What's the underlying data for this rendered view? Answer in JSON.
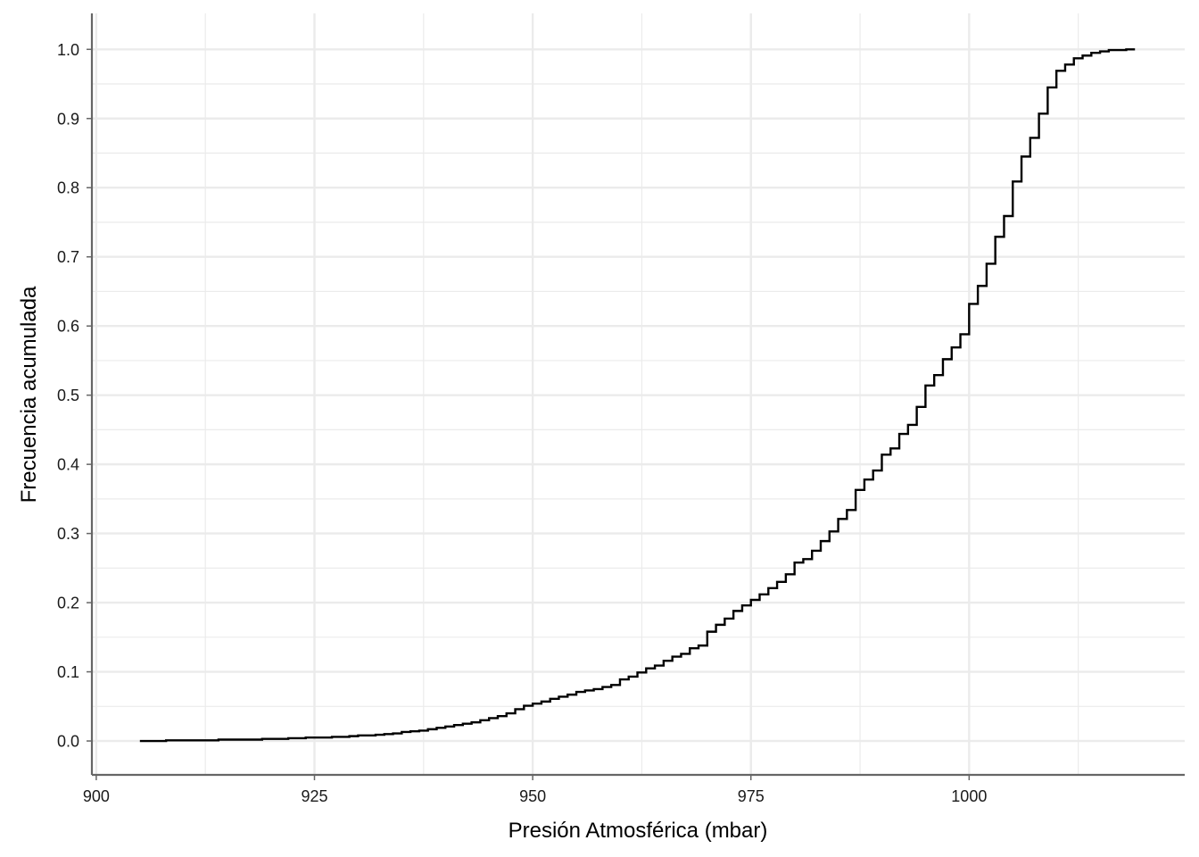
{
  "chart_data": {
    "type": "line",
    "step": true,
    "title": "",
    "xlabel": "Presión Atmosférica (mbar)",
    "ylabel": "Frecuencia acumulada",
    "xlim": [
      899.5,
      1024.7
    ],
    "ylim": [
      -0.049,
      1.052
    ],
    "x_ticks": [
      900,
      925,
      950,
      975,
      1000
    ],
    "x_tick_labels": [
      "900",
      "925",
      "950",
      "975",
      "1000"
    ],
    "y_ticks": [
      0,
      0.1,
      0.2,
      0.3,
      0.4,
      0.5,
      0.6,
      0.7,
      0.8,
      0.9,
      1.0
    ],
    "y_tick_labels": [
      "0.0",
      "0.1",
      "0.2",
      "0.3",
      "0.4",
      "0.5",
      "0.6",
      "0.7",
      "0.8",
      "0.9",
      "1.0"
    ],
    "grid": true,
    "line_color": "#000000",
    "grid_color": "#ebebeb",
    "axis_color": "#666666",
    "x": [
      905,
      906,
      907,
      908,
      909,
      910,
      911,
      912,
      913,
      914,
      915,
      916,
      917,
      918,
      919,
      920,
      921,
      922,
      923,
      924,
      925,
      926,
      927,
      928,
      929,
      930,
      931,
      932,
      933,
      934,
      935,
      936,
      937,
      938,
      939,
      940,
      941,
      942,
      943,
      944,
      945,
      946,
      947,
      948,
      949,
      950,
      951,
      952,
      953,
      954,
      955,
      956,
      957,
      958,
      959,
      960,
      961,
      962,
      963,
      964,
      965,
      966,
      967,
      968,
      969,
      970,
      971,
      972,
      973,
      974,
      975,
      976,
      977,
      978,
      979,
      980,
      981,
      982,
      983,
      984,
      985,
      986,
      987,
      988,
      989,
      990,
      991,
      992,
      993,
      994,
      995,
      996,
      997,
      998,
      999,
      1000,
      1001,
      1002,
      1003,
      1004,
      1005,
      1006,
      1007,
      1008,
      1009,
      1010,
      1011,
      1012,
      1013,
      1014,
      1015,
      1016,
      1017,
      1018,
      1019
    ],
    "y": [
      0.0,
      0.0,
      0.0,
      0.001,
      0.001,
      0.001,
      0.001,
      0.001,
      0.001,
      0.002,
      0.002,
      0.002,
      0.002,
      0.002,
      0.003,
      0.003,
      0.003,
      0.004,
      0.004,
      0.005,
      0.005,
      0.005,
      0.006,
      0.006,
      0.007,
      0.008,
      0.008,
      0.009,
      0.01,
      0.011,
      0.013,
      0.014,
      0.015,
      0.017,
      0.019,
      0.021,
      0.023,
      0.025,
      0.027,
      0.03,
      0.033,
      0.036,
      0.04,
      0.046,
      0.051,
      0.054,
      0.057,
      0.061,
      0.064,
      0.067,
      0.071,
      0.073,
      0.075,
      0.078,
      0.081,
      0.089,
      0.093,
      0.099,
      0.105,
      0.109,
      0.116,
      0.122,
      0.126,
      0.134,
      0.138,
      0.158,
      0.168,
      0.177,
      0.188,
      0.196,
      0.204,
      0.212,
      0.221,
      0.23,
      0.241,
      0.258,
      0.263,
      0.275,
      0.289,
      0.303,
      0.321,
      0.334,
      0.363,
      0.378,
      0.391,
      0.414,
      0.423,
      0.444,
      0.457,
      0.483,
      0.514,
      0.529,
      0.552,
      0.569,
      0.588,
      0.632,
      0.658,
      0.69,
      0.729,
      0.759,
      0.809,
      0.845,
      0.872,
      0.907,
      0.945,
      0.969,
      0.978,
      0.987,
      0.991,
      0.995,
      0.997,
      0.999,
      0.999,
      1.0,
      1.0
    ]
  }
}
